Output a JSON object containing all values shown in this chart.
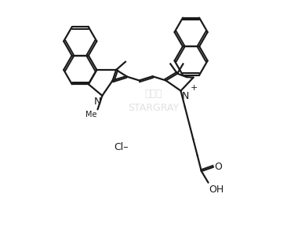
{
  "background_color": "#ffffff",
  "line_color": "#1a1a1a",
  "line_width": 1.6,
  "figsize": [
    3.8,
    2.98
  ],
  "dpi": 100,
  "xlim": [
    0,
    10
  ],
  "ylim": [
    -0.5,
    9.5
  ]
}
